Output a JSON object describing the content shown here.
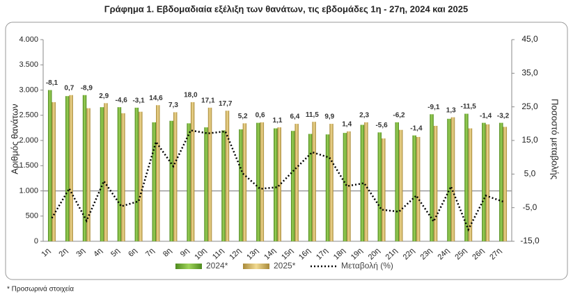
{
  "chart_data": {
    "type": "bar_line",
    "title": "Γράφημα 1.  Εβδομαδιαία εξέλιξη των θανάτων, τις εβδομάδες 1η - 27η, 2024 και 2025",
    "ylabel": "Αριθμός θανάτων",
    "y2label": "Ποσοστό μεταβολής",
    "footnote": "* Προσωρινά στοιχεία",
    "categories": [
      "1η",
      "2η",
      "3η",
      "4η",
      "5η",
      "6η",
      "7η",
      "8η",
      "9η",
      "10η",
      "11η",
      "12η",
      "13η",
      "14η",
      "15η",
      "16η",
      "17η",
      "18η",
      "19η",
      "20η",
      "21η",
      "22η",
      "23η",
      "24η",
      "25η",
      "26η",
      "27η"
    ],
    "series": [
      {
        "name": "2024*",
        "color": "#6aa532",
        "values": [
          3000,
          2880,
          2900,
          2660,
          2660,
          2650,
          2360,
          2390,
          2340,
          2260,
          2200,
          2220,
          2350,
          2240,
          2190,
          2130,
          2120,
          2150,
          2310,
          2160,
          2360,
          2100,
          2520,
          2430,
          2530,
          2350,
          2350
        ]
      },
      {
        "name": "2025*",
        "color": "#d4b25c",
        "values": [
          2760,
          2900,
          2640,
          2740,
          2540,
          2570,
          2700,
          2560,
          2760,
          2650,
          2590,
          2340,
          2360,
          2260,
          2330,
          2370,
          2330,
          2180,
          2360,
          2040,
          2210,
          2070,
          2290,
          2460,
          2240,
          2320,
          2270
        ]
      },
      {
        "name": "Μεταβολή (%)",
        "color": "#000000",
        "axis": "y2",
        "values": [
          -8.1,
          0.7,
          -8.9,
          2.9,
          -4.6,
          -3.1,
          14.6,
          7.3,
          18.0,
          17.1,
          17.7,
          5.2,
          0.6,
          1.1,
          6.4,
          11.5,
          9.9,
          1.4,
          2.3,
          -5.6,
          -6.2,
          -1.4,
          -9.1,
          1.3,
          -11.5,
          -1.4,
          -3.2
        ],
        "value_labels": [
          "-8,1",
          "0,7",
          "-8,9",
          "2,9",
          "-4,6",
          "-3,1",
          "14,6",
          "7,3",
          "18,0",
          "17,1",
          "17,7",
          "5,2",
          "0,6",
          "1,1",
          "6,4",
          "11,5",
          "9,9",
          "1,4",
          "2,3",
          "-5,6",
          "-6,2",
          "-1,4",
          "-9,1",
          "1,3",
          "-11,5",
          "-1,4",
          "-3,2"
        ]
      }
    ],
    "ylim": [
      0,
      4000
    ],
    "yticks": [
      0,
      500,
      {
        "value": 1000,
        "label": "1.000"
      },
      {
        "value": 1500,
        "label": "1.500"
      },
      {
        "value": 2000,
        "label": "2.000"
      },
      {
        "value": 2500,
        "label": "2.500"
      },
      {
        "value": 3000,
        "label": "3.000"
      },
      {
        "value": 3500,
        "label": "3.500"
      },
      {
        "value": 4000,
        "label": "4.000"
      }
    ],
    "y2lim": [
      -15,
      45
    ],
    "y2ticks": [
      {
        "value": -15,
        "label": "-15,0"
      },
      {
        "value": -5,
        "label": "-5,0"
      },
      {
        "value": 5,
        "label": "5,0"
      },
      {
        "value": 15,
        "label": "15,0"
      },
      {
        "value": 25,
        "label": "25,0"
      },
      {
        "value": 35,
        "label": "35,0"
      },
      {
        "value": 45,
        "label": "45,0"
      }
    ],
    "legend": "bottom"
  }
}
